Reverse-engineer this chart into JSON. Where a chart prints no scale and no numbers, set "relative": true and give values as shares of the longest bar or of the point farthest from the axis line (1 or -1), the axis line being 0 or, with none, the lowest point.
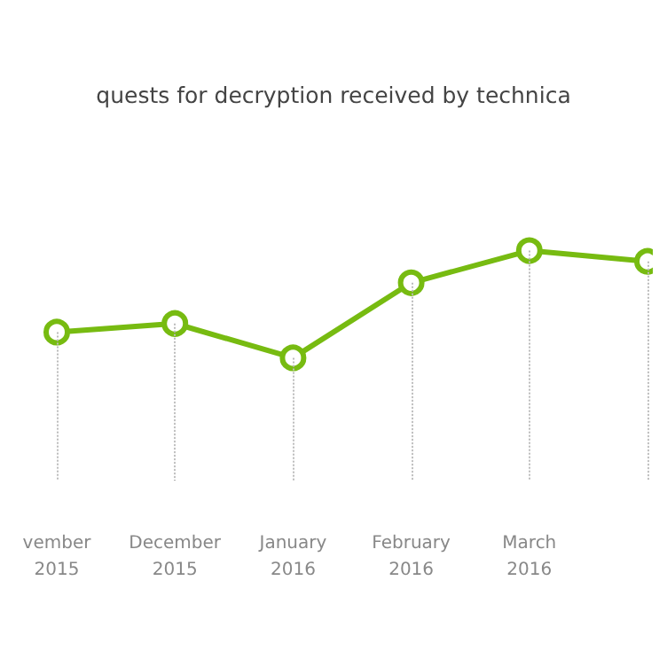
{
  "chart_data": {
    "type": "line",
    "title": "quests for decryption received by technica",
    "categories": [
      "vember\n2015",
      "December\n2015",
      "January\n2016",
      "February\n2016",
      "March\n2016",
      null
    ],
    "series": [
      {
        "color": "#77bb11",
        "values": [
          0.24,
          0.32,
          0,
          0.7,
          1,
          0.9
        ]
      }
    ],
    "relative": true,
    "grid": "x",
    "marker": "circle",
    "line_style": "solid"
  }
}
